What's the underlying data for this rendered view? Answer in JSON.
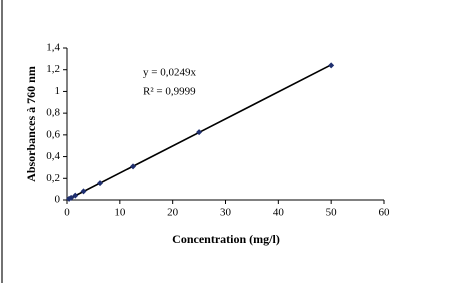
{
  "chart_data": {
    "type": "scatter",
    "x_label": "Concentration (mg/l)",
    "y_label": "Absorbances à 760 nm",
    "annotations": [
      "y = 0,0249x",
      "R² = 0,9999"
    ],
    "trendline": {
      "slope": 0.0249
    },
    "series": [
      {
        "color": "#1f2f6f",
        "x": [
          0.39,
          0.78,
          1.56,
          3.125,
          6.25,
          12.5,
          25,
          50
        ],
        "values": [
          0.01,
          0.02,
          0.04,
          0.08,
          0.155,
          0.31,
          0.625,
          1.24
        ]
      }
    ],
    "xlim": [
      0,
      60
    ],
    "xticks": [
      0,
      10,
      20,
      30,
      40,
      50,
      60
    ],
    "ylim": [
      0,
      1.4
    ],
    "yticks": [
      0,
      {
        "value": 0.2,
        "label": "0,2"
      },
      {
        "value": 0.4,
        "label": "0,4"
      },
      {
        "value": 0.6,
        "label": "0,6"
      },
      {
        "value": 0.8,
        "label": "0,8"
      },
      1,
      {
        "value": 1.2,
        "label": "1,2"
      },
      {
        "value": 1.4,
        "label": "1,4"
      }
    ]
  }
}
